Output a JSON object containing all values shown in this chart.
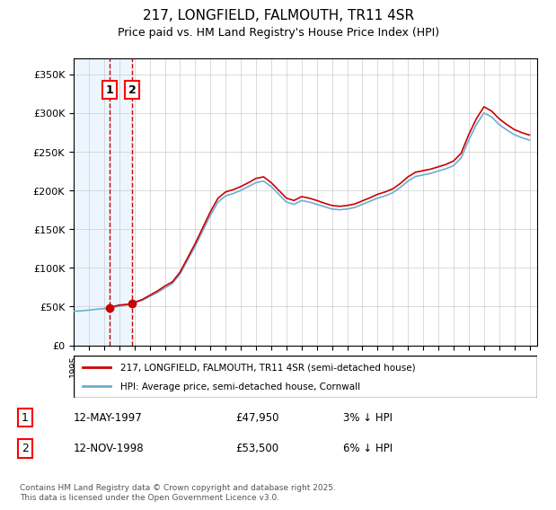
{
  "title": "217, LONGFIELD, FALMOUTH, TR11 4SR",
  "subtitle": "Price paid vs. HM Land Registry's House Price Index (HPI)",
  "legend_line1": "217, LONGFIELD, FALMOUTH, TR11 4SR (semi-detached house)",
  "legend_line2": "HPI: Average price, semi-detached house, Cornwall",
  "footer": "Contains HM Land Registry data © Crown copyright and database right 2025.\nThis data is licensed under the Open Government Licence v3.0.",
  "transaction1_label": "1",
  "transaction1_date": "12-MAY-1997",
  "transaction1_price": "£47,950",
  "transaction1_hpi": "3% ↓ HPI",
  "transaction1_year": 1997.36,
  "transaction1_value": 47950,
  "transaction2_label": "2",
  "transaction2_date": "12-NOV-1998",
  "transaction2_price": "£53,500",
  "transaction2_hpi": "6% ↓ HPI",
  "transaction2_year": 1998.86,
  "transaction2_value": 53500,
  "hpi_color": "#6dadd1",
  "price_color": "#cc0000",
  "vline_color": "#cc0000",
  "bg_shade_color": "#ddeeff",
  "ylim": [
    0,
    370000
  ],
  "xlim_start": 1995.0,
  "xlim_end": 2025.5
}
